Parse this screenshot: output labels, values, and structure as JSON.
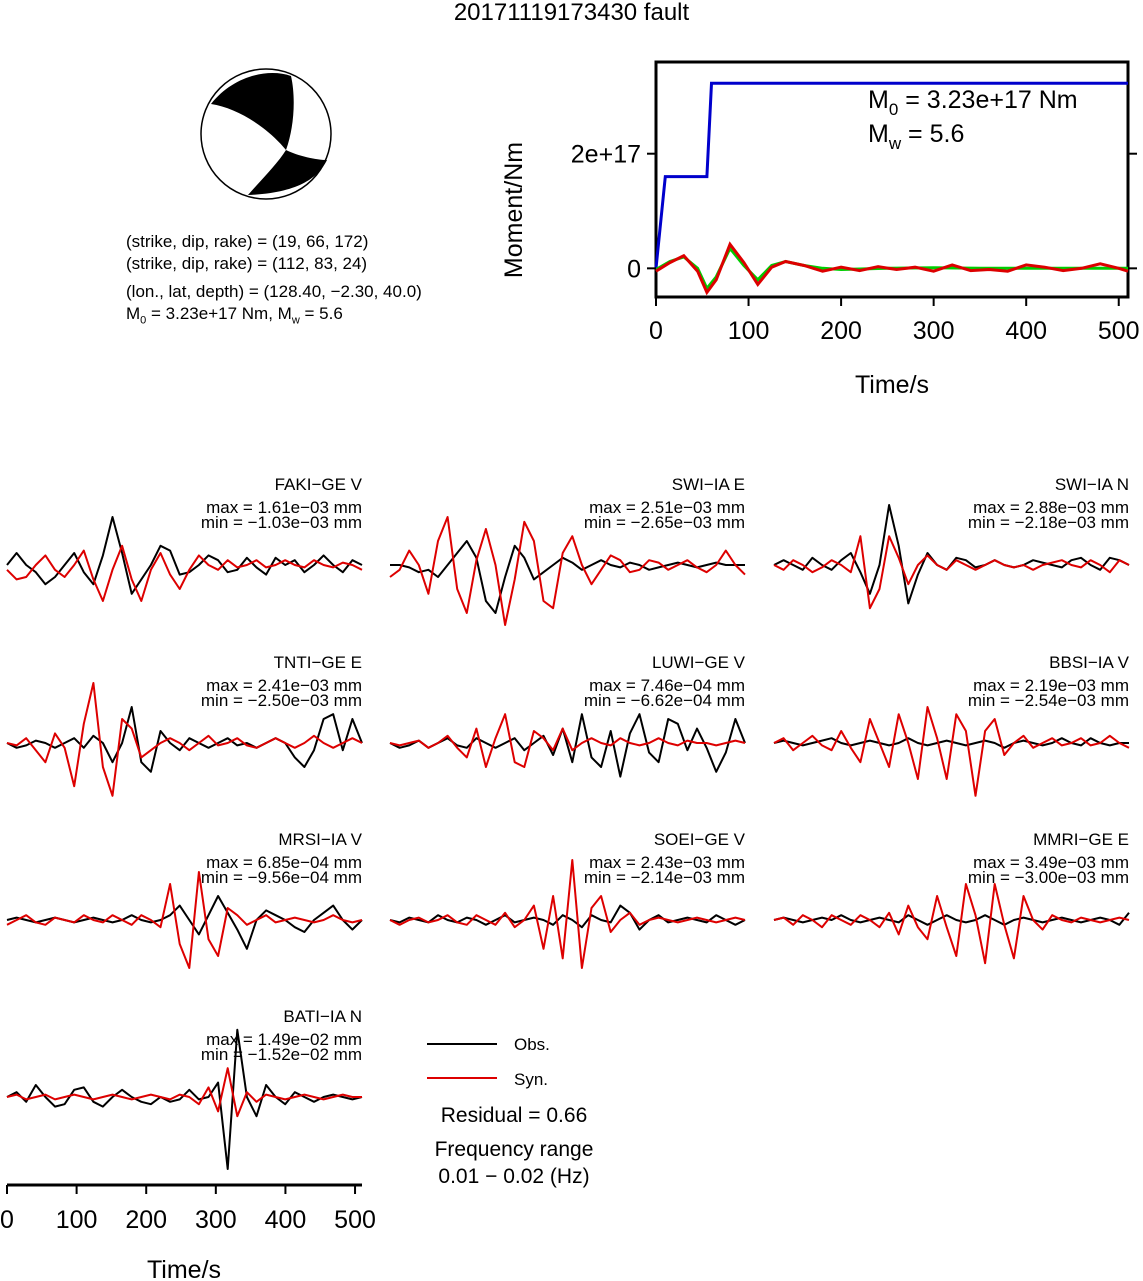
{
  "title": "20171119173430 fault",
  "mechanism": {
    "plane1": "(strike, dip, rake) = (19, 66, 172)",
    "plane2": "(strike, dip, rake) = (112, 83, 24)",
    "location": "(lon., lat, depth) = (128.40, −2.30, 40.0)",
    "moment_main": "M",
    "moment_sub": "0",
    "moment_rest": " = 3.23e+17 Nm, M",
    "mw_sub": "w",
    "mw_rest": " = 5.6"
  },
  "chart_data": [
    {
      "type": "line",
      "id": "moment-function",
      "xlabel": "Time/s",
      "ylabel": "Moment/Nm",
      "xlim": [
        0,
        510
      ],
      "ylim": [
        -5e+16,
        3.6e+17
      ],
      "xticks": [
        "0",
        "100",
        "200",
        "300",
        "400",
        "500"
      ],
      "yticks": [
        "0",
        "2e+17"
      ],
      "annotation": {
        "m0_main": "M",
        "m0_sub": "0",
        "m0_rest": " = 3.23e+17 Nm",
        "mw_main": "M",
        "mw_sub": "w",
        "mw_rest": " = 5.6"
      },
      "series": [
        {
          "color": "#0000cc",
          "x": [
            0,
            10,
            55,
            60,
            510
          ],
          "y": [
            0,
            1.6e+17,
            1.6e+17,
            3.23e+17,
            3.23e+17
          ]
        },
        {
          "color": "#00cc00",
          "x": [
            0,
            15,
            30,
            45,
            55,
            65,
            80,
            95,
            110,
            125,
            140,
            160,
            180,
            200,
            250,
            300,
            350,
            400,
            450,
            510
          ],
          "y": [
            -2000000000000000.0,
            1.2e+16,
            2e+16,
            0,
            -3.5e+16,
            -1.5e+16,
            3.5e+16,
            5000000000000000.0,
            -2e+16,
            5000000000000000.0,
            1.2e+16,
            5000000000000000.0,
            0,
            -2000000000000000.0,
            0,
            1000000000000000.0,
            0,
            0,
            0,
            0
          ]
        },
        {
          "color": "#dd0000",
          "x": [
            0,
            15,
            30,
            45,
            55,
            65,
            80,
            95,
            110,
            125,
            140,
            160,
            180,
            200,
            220,
            240,
            260,
            280,
            300,
            320,
            340,
            360,
            380,
            400,
            420,
            440,
            460,
            480,
            500,
            510
          ],
          "y": [
            -5000000000000000.0,
            1e+16,
            2.2e+16,
            -5000000000000000.0,
            -4.2e+16,
            -2e+16,
            4.2e+16,
            1e+16,
            -2.8e+16,
            2000000000000000.0,
            1.2e+16,
            5000000000000000.0,
            -5000000000000000.0,
            2000000000000000.0,
            -4000000000000000.0,
            3000000000000000.0,
            -2000000000000000.0,
            2000000000000000.0,
            -5000000000000000.0,
            6000000000000000.0,
            -4000000000000000.0,
            -2000000000000000.0,
            -5000000000000000.0,
            6000000000000000.0,
            2000000000000000.0,
            -4000000000000000.0,
            0,
            8000000000000000.0,
            0,
            -5000000000000000.0
          ]
        }
      ]
    },
    {
      "type": "line",
      "id": "waveforms",
      "xlabel": "Time/s",
      "xlim": [
        0,
        510
      ],
      "xticks": [
        "0",
        "100",
        "200",
        "300",
        "400",
        "500"
      ],
      "legend": {
        "obs": "Obs.",
        "syn": "Syn."
      },
      "residual": "Residual = 0.66",
      "freq_label": "Frequency range",
      "freq_value": "0.01 − 0.02 (Hz)",
      "stations": [
        {
          "name": "FAKI−GE V",
          "max": "max = 1.61e−03 mm",
          "min": "min = −1.03e−03 mm",
          "obs": [
            0,
            5,
            0,
            -3,
            -8,
            -5,
            0,
            5,
            -3,
            -8,
            4,
            20,
            5,
            -12,
            -6,
            0,
            8,
            6,
            -4,
            -3,
            0,
            4,
            2,
            -3,
            -2,
            3,
            -1,
            -4,
            3,
            0,
            2,
            -3,
            0,
            4,
            0,
            -3,
            2,
            0
          ],
          "syn": [
            -2,
            -6,
            -5,
            0,
            4,
            -2,
            -5,
            0,
            6,
            -6,
            -15,
            -2,
            8,
            -6,
            -15,
            -2,
            5,
            -4,
            -10,
            -2,
            4,
            0,
            -2,
            2,
            -1,
            0,
            2,
            -1,
            0,
            2,
            0,
            -1,
            2,
            0,
            -1,
            1,
            0,
            -2
          ]
        },
        {
          "name": "SWI−IA E",
          "max": "max = 2.51e−03 mm",
          "min": "min = −2.65e−03 mm",
          "obs": [
            0,
            0,
            -1,
            -3,
            -2,
            -5,
            0,
            5,
            10,
            3,
            -15,
            -20,
            -5,
            8,
            3,
            -6,
            -3,
            0,
            3,
            1,
            -2,
            0,
            2,
            0,
            -1,
            1,
            0,
            -2,
            -1,
            0,
            1,
            0,
            -1,
            0,
            1,
            0,
            0,
            0
          ],
          "syn": [
            -5,
            -2,
            6,
            0,
            -12,
            10,
            20,
            -10,
            -20,
            2,
            15,
            0,
            -25,
            -6,
            18,
            10,
            -15,
            -18,
            5,
            12,
            0,
            -8,
            -2,
            4,
            2,
            -3,
            -2,
            2,
            1,
            -2,
            0,
            2,
            -1,
            -3,
            0,
            6,
            0,
            -4
          ]
        },
        {
          "name": "SWI−IA N",
          "max": "max = 2.88e−03 mm",
          "min": "min = −2.18e−03 mm",
          "obs": [
            0,
            2,
            0,
            -2,
            3,
            0,
            -2,
            2,
            5,
            -3,
            -12,
            0,
            25,
            8,
            -16,
            -4,
            5,
            0,
            -2,
            3,
            2,
            -1,
            0,
            2,
            0,
            -1,
            0,
            2,
            1,
            0,
            -1,
            2,
            3,
            0,
            -2,
            3,
            2,
            0
          ],
          "syn": [
            0,
            -2,
            2,
            0,
            -3,
            -1,
            2,
            0,
            -3,
            12,
            -18,
            -10,
            12,
            3,
            -8,
            0,
            4,
            0,
            -2,
            2,
            0,
            -2,
            0,
            2,
            0,
            -1,
            0,
            -2,
            0,
            1,
            2,
            0,
            -1,
            2,
            0,
            -3,
            2,
            0
          ]
        },
        {
          "name": "TNTI−GE E",
          "max": "max = 2.41e−03 mm",
          "min": "min = −2.50e−03 mm",
          "obs": [
            0,
            -2,
            -1,
            1,
            0,
            -2,
            0,
            2,
            -2,
            3,
            0,
            -8,
            0,
            15,
            -8,
            -12,
            5,
            0,
            -3,
            2,
            0,
            -2,
            0,
            2,
            -1,
            0,
            -2,
            0,
            2,
            0,
            -6,
            -10,
            -3,
            10,
            12,
            -3,
            10,
            0
          ],
          "syn": [
            0,
            -1,
            2,
            -3,
            -8,
            4,
            -2,
            -18,
            8,
            25,
            -10,
            -22,
            10,
            6,
            -6,
            -3,
            0,
            2,
            0,
            -3,
            0,
            3,
            -1,
            0,
            2,
            -1,
            -2,
            0,
            2,
            0,
            -2,
            0,
            3,
            0,
            -2,
            0,
            2,
            0
          ]
        },
        {
          "name": "LUWI−GE V",
          "max": "max = 7.46e−04 mm",
          "min": "min = −6.62e−04 mm",
          "obs": [
            0,
            -2,
            -1,
            1,
            -2,
            0,
            2,
            -1,
            -2,
            2,
            0,
            -2,
            0,
            2,
            -3,
            0,
            3,
            -5,
            6,
            -8,
            12,
            -6,
            -10,
            5,
            -14,
            4,
            12,
            -4,
            -8,
            10,
            8,
            -3,
            6,
            -2,
            -12,
            -4,
            10,
            0
          ],
          "syn": [
            0,
            -1,
            0,
            1,
            -2,
            0,
            3,
            -2,
            -6,
            6,
            -10,
            2,
            12,
            -8,
            -10,
            5,
            2,
            -3,
            6,
            -3,
            0,
            2,
            0,
            -1,
            2,
            0,
            -1,
            0,
            2,
            0,
            -1,
            1,
            0,
            0,
            -1,
            0,
            1,
            0
          ]
        },
        {
          "name": "BBSI−IA V",
          "max": "max = 2.19e−03 mm",
          "min": "min = −2.54e−03 mm",
          "obs": [
            0,
            1,
            0,
            -1,
            0,
            1,
            2,
            0,
            -1,
            0,
            1,
            0,
            -1,
            0,
            2,
            0,
            -1,
            0,
            1,
            0,
            -1,
            0,
            1,
            0,
            -2,
            0,
            1,
            0,
            -1,
            0,
            2,
            0,
            -1,
            2,
            0,
            -1,
            0,
            0
          ],
          "syn": [
            0,
            2,
            -3,
            0,
            3,
            -1,
            -3,
            5,
            -2,
            -8,
            10,
            0,
            -10,
            12,
            0,
            -15,
            15,
            2,
            -15,
            12,
            5,
            -22,
            5,
            10,
            -5,
            0,
            3,
            -2,
            0,
            2,
            -1,
            0,
            2,
            -1,
            0,
            3,
            0,
            -2
          ]
        },
        {
          "name": "MRSI−IA V",
          "max": "max = 6.85e−04 mm",
          "min": "min = −9.56e−04 mm",
          "obs": [
            0,
            1,
            0,
            -1,
            0,
            1,
            0,
            -1,
            0,
            1,
            0,
            -1,
            0,
            2,
            0,
            -1,
            0,
            2,
            6,
            0,
            -6,
            2,
            10,
            3,
            -4,
            -12,
            0,
            4,
            2,
            0,
            -3,
            -5,
            0,
            3,
            6,
            0,
            -4,
            0
          ],
          "syn": [
            -2,
            0,
            2,
            -1,
            -2,
            1,
            0,
            -1,
            2,
            0,
            -1,
            2,
            0,
            -2,
            2,
            0,
            -3,
            15,
            -10,
            -20,
            20,
            -8,
            -15,
            5,
            2,
            -2,
            0,
            2,
            -1,
            0,
            1,
            0,
            -1,
            0,
            2,
            0,
            -1,
            0
          ]
        },
        {
          "name": "SOEI−GE V",
          "max": "max = 2.43e−03 mm",
          "min": "min = −2.14e−03 mm",
          "obs": [
            0,
            -1,
            1,
            0,
            -1,
            2,
            0,
            -1,
            1,
            0,
            -2,
            0,
            2,
            -1,
            0,
            1,
            0,
            -2,
            2,
            0,
            -3,
            2,
            0,
            -1,
            6,
            3,
            -4,
            0,
            2,
            -1,
            0,
            1,
            0,
            -1,
            2,
            0,
            -2,
            0
          ],
          "syn": [
            0,
            -2,
            0,
            1,
            -1,
            0,
            2,
            -1,
            -2,
            2,
            0,
            -2,
            3,
            -3,
            0,
            6,
            -12,
            10,
            -16,
            25,
            -20,
            5,
            10,
            -5,
            0,
            3,
            -2,
            0,
            1,
            0,
            -1,
            0,
            1,
            0,
            -1,
            0,
            1,
            0
          ]
        },
        {
          "name": "MMRI−GE E",
          "max": "max = 3.49e−03 mm",
          "min": "min = −3.00e−03 mm",
          "obs": [
            0,
            1,
            0,
            -1,
            0,
            1,
            0,
            2,
            0,
            -1,
            0,
            1,
            0,
            -1,
            2,
            0,
            -2,
            0,
            2,
            0,
            -1,
            0,
            2,
            0,
            -2,
            0,
            1,
            0,
            -1,
            0,
            1,
            0,
            -1,
            0,
            1,
            0,
            -2,
            3
          ],
          "syn": [
            0,
            1,
            -2,
            2,
            0,
            -3,
            2,
            0,
            -2,
            2,
            0,
            -3,
            3,
            -6,
            6,
            -3,
            -8,
            10,
            -3,
            -15,
            15,
            2,
            -18,
            15,
            -2,
            -16,
            10,
            0,
            -4,
            2,
            0,
            -1,
            1,
            0,
            -1,
            0,
            1,
            0
          ]
        },
        {
          "name": "BATI−IA N",
          "max": "max = 1.49e−02 mm",
          "min": "min = −1.52e−02 mm",
          "obs": [
            0,
            2,
            -2,
            5,
            0,
            -4,
            -3,
            3,
            4,
            -2,
            -4,
            0,
            3,
            0,
            -2,
            -3,
            0,
            -2,
            -1,
            3,
            -1,
            0,
            6,
            -30,
            28,
            0,
            -8,
            5,
            0,
            -3,
            2,
            0,
            -2,
            0,
            1,
            0,
            -1,
            0
          ],
          "syn": [
            0,
            1,
            -1,
            0,
            1,
            -1,
            0,
            1,
            0,
            -1,
            0,
            1,
            0,
            -1,
            0,
            1,
            0,
            -1,
            1,
            0,
            -3,
            4,
            -6,
            12,
            -8,
            2,
            -2,
            1,
            0,
            -1,
            0,
            1,
            0,
            -1,
            0,
            1,
            0,
            0
          ]
        }
      ]
    }
  ]
}
